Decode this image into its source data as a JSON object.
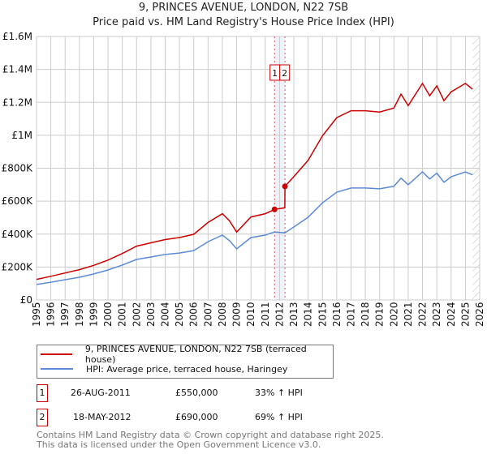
{
  "chart_data": {
    "type": "line",
    "title": "9, PRINCES AVENUE, LONDON, N22 7SB",
    "subtitle": "Price paid vs. HM Land Registry's House Price Index (HPI)",
    "xlabel": "",
    "ylabel": "",
    "xlim": [
      1995,
      2026
    ],
    "ylim": [
      0,
      1600000
    ],
    "grid": true,
    "y_ticks": [
      0,
      200000,
      400000,
      600000,
      800000,
      1000000,
      1200000,
      1400000,
      1600000
    ],
    "y_tick_labels": [
      "£0",
      "£200K",
      "£400K",
      "£600K",
      "£800K",
      "£1M",
      "£1.2M",
      "£1.4M",
      "£1.6M"
    ],
    "x_ticks": [
      "1995",
      "1996",
      "1997",
      "1998",
      "1999",
      "2000",
      "2001",
      "2002",
      "2003",
      "2004",
      "2005",
      "2006",
      "2007",
      "2008",
      "2009",
      "2010",
      "2011",
      "2012",
      "2013",
      "2014",
      "2015",
      "2016",
      "2017",
      "2018",
      "2019",
      "2020",
      "2021",
      "2022",
      "2023",
      "2024",
      "2025",
      "2026"
    ],
    "series": [
      {
        "name": "9, PRINCES AVENUE, LONDON, N22 7SB (terraced house)",
        "color": "#cc0000",
        "x": [
          1995,
          1996,
          1997,
          1998,
          1999,
          2000,
          2001,
          2002,
          2003,
          2004,
          2005,
          2006,
          2007,
          2008,
          2008.5,
          2009,
          2010,
          2011,
          2011.65,
          2012.37,
          2012.38,
          2013,
          2014,
          2015,
          2016,
          2017,
          2018,
          2019,
          2020,
          2020.5,
          2021,
          2022,
          2022.5,
          2023,
          2023.5,
          2024,
          2025,
          2025.5
        ],
        "y": [
          125000,
          144000,
          164000,
          184000,
          210000,
          242000,
          282000,
          327000,
          347000,
          367000,
          379000,
          399000,
          471000,
          524000,
          480000,
          412000,
          504000,
          524000,
          550000,
          560000,
          690000,
          749000,
          848000,
          997000,
          1107000,
          1149000,
          1149000,
          1141000,
          1166000,
          1250000,
          1180000,
          1315000,
          1240000,
          1300000,
          1210000,
          1264000,
          1315000,
          1280000
        ]
      },
      {
        "name": "HPI: Average price, terraced house, Haringey",
        "color": "#5b8bd6",
        "x": [
          1995,
          1996,
          1997,
          1998,
          1999,
          2000,
          2001,
          2002,
          2003,
          2004,
          2005,
          2006,
          2007,
          2008,
          2008.5,
          2009,
          2010,
          2011,
          2011.65,
          2012.37,
          2012.38,
          2013,
          2014,
          2015,
          2016,
          2017,
          2018,
          2019,
          2020,
          2020.5,
          2021,
          2022,
          2022.5,
          2023,
          2023.5,
          2024,
          2025,
          2025.5
        ],
        "y": [
          94000,
          108000,
          123000,
          138000,
          158000,
          182000,
          212000,
          246000,
          261000,
          276000,
          285000,
          300000,
          354000,
          394000,
          360000,
          310000,
          379000,
          394000,
          413000,
          408000,
          408000,
          443000,
          502000,
          590000,
          655000,
          680000,
          680000,
          675000,
          690000,
          740000,
          700000,
          778000,
          735000,
          770000,
          715000,
          748000,
          778000,
          760000
        ]
      }
    ],
    "annotations": [
      {
        "label": "1",
        "x": 2011.65,
        "y": 550000
      },
      {
        "label": "2",
        "x": 2012.38,
        "y": 690000
      }
    ]
  },
  "legend": {
    "items": [
      {
        "label": "9, PRINCES AVENUE, LONDON, N22 7SB (terraced house)",
        "color": "#cc0000"
      },
      {
        "label": "HPI: Average price, terraced house, Haringey",
        "color": "#5b8bd6"
      }
    ]
  },
  "transactions": [
    {
      "num": "1",
      "date": "26-AUG-2011",
      "price": "£550,000",
      "hpi": "33% ↑ HPI"
    },
    {
      "num": "2",
      "date": "18-MAY-2012",
      "price": "£690,000",
      "hpi": "69% ↑ HPI"
    }
  ],
  "footer": {
    "line1": "Contains HM Land Registry data © Crown copyright and database right 2025.",
    "line2": "This data is licensed under the Open Government Licence v3.0."
  }
}
